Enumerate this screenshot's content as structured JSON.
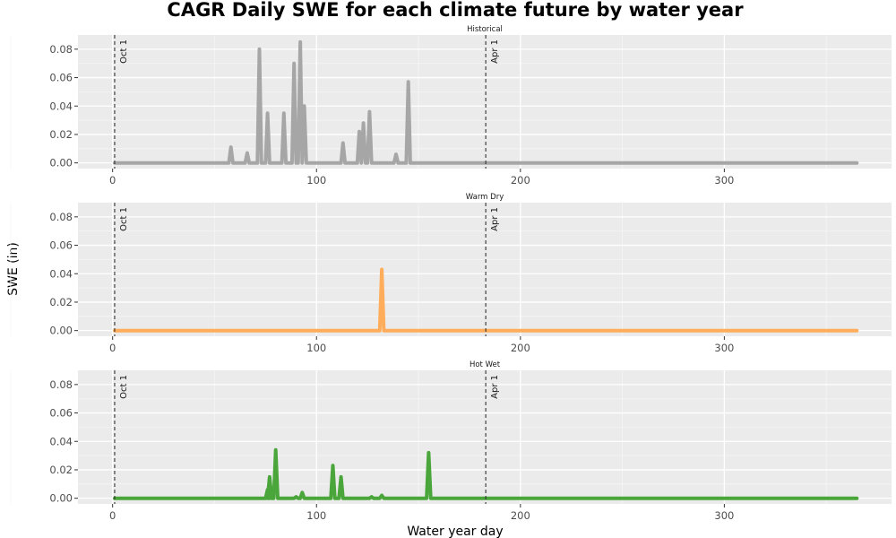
{
  "chart_data": {
    "type": "line",
    "title": "CAGR Daily SWE for each climate future by water year",
    "xlabel": "Water year day",
    "ylabel": "SWE (in)",
    "xlim": [
      -17,
      382
    ],
    "ylim": [
      -0.004,
      0.09
    ],
    "x_ticks": [
      0,
      100,
      200,
      300
    ],
    "y_ticks": [
      0.0,
      0.02,
      0.04,
      0.06,
      0.08
    ],
    "y_tick_labels": [
      "0.00",
      "0.02",
      "0.04",
      "0.06",
      "0.08"
    ],
    "x_range": [
      1,
      365
    ],
    "grid": true,
    "reference_lines": [
      {
        "x": 1,
        "label": "Oct 1"
      },
      {
        "x": 183,
        "label": "Apr 1"
      }
    ],
    "panels": [
      {
        "name": "Historical",
        "color": "#a6a6a6",
        "peaks": [
          {
            "x": 58,
            "y": 0.011
          },
          {
            "x": 66,
            "y": 0.007
          },
          {
            "x": 72,
            "y": 0.08
          },
          {
            "x": 76,
            "y": 0.035
          },
          {
            "x": 84,
            "y": 0.035
          },
          {
            "x": 89,
            "y": 0.07
          },
          {
            "x": 92,
            "y": 0.085
          },
          {
            "x": 94,
            "y": 0.04
          },
          {
            "x": 113,
            "y": 0.014
          },
          {
            "x": 121,
            "y": 0.022
          },
          {
            "x": 123,
            "y": 0.028
          },
          {
            "x": 126,
            "y": 0.036
          },
          {
            "x": 139,
            "y": 0.006
          },
          {
            "x": 145,
            "y": 0.057
          }
        ]
      },
      {
        "name": "Warm Dry",
        "color": "#ffad5b",
        "peaks": [
          {
            "x": 132,
            "y": 0.043
          }
        ]
      },
      {
        "name": "Hot Wet",
        "color": "#4aa63b",
        "peaks": [
          {
            "x": 76,
            "y": 0.006
          },
          {
            "x": 77,
            "y": 0.015
          },
          {
            "x": 80,
            "y": 0.034
          },
          {
            "x": 90,
            "y": 0.001
          },
          {
            "x": 93,
            "y": 0.004
          },
          {
            "x": 108,
            "y": 0.023
          },
          {
            "x": 112,
            "y": 0.015
          },
          {
            "x": 127,
            "y": 0.001
          },
          {
            "x": 132,
            "y": 0.002
          },
          {
            "x": 155,
            "y": 0.032
          }
        ]
      }
    ]
  }
}
